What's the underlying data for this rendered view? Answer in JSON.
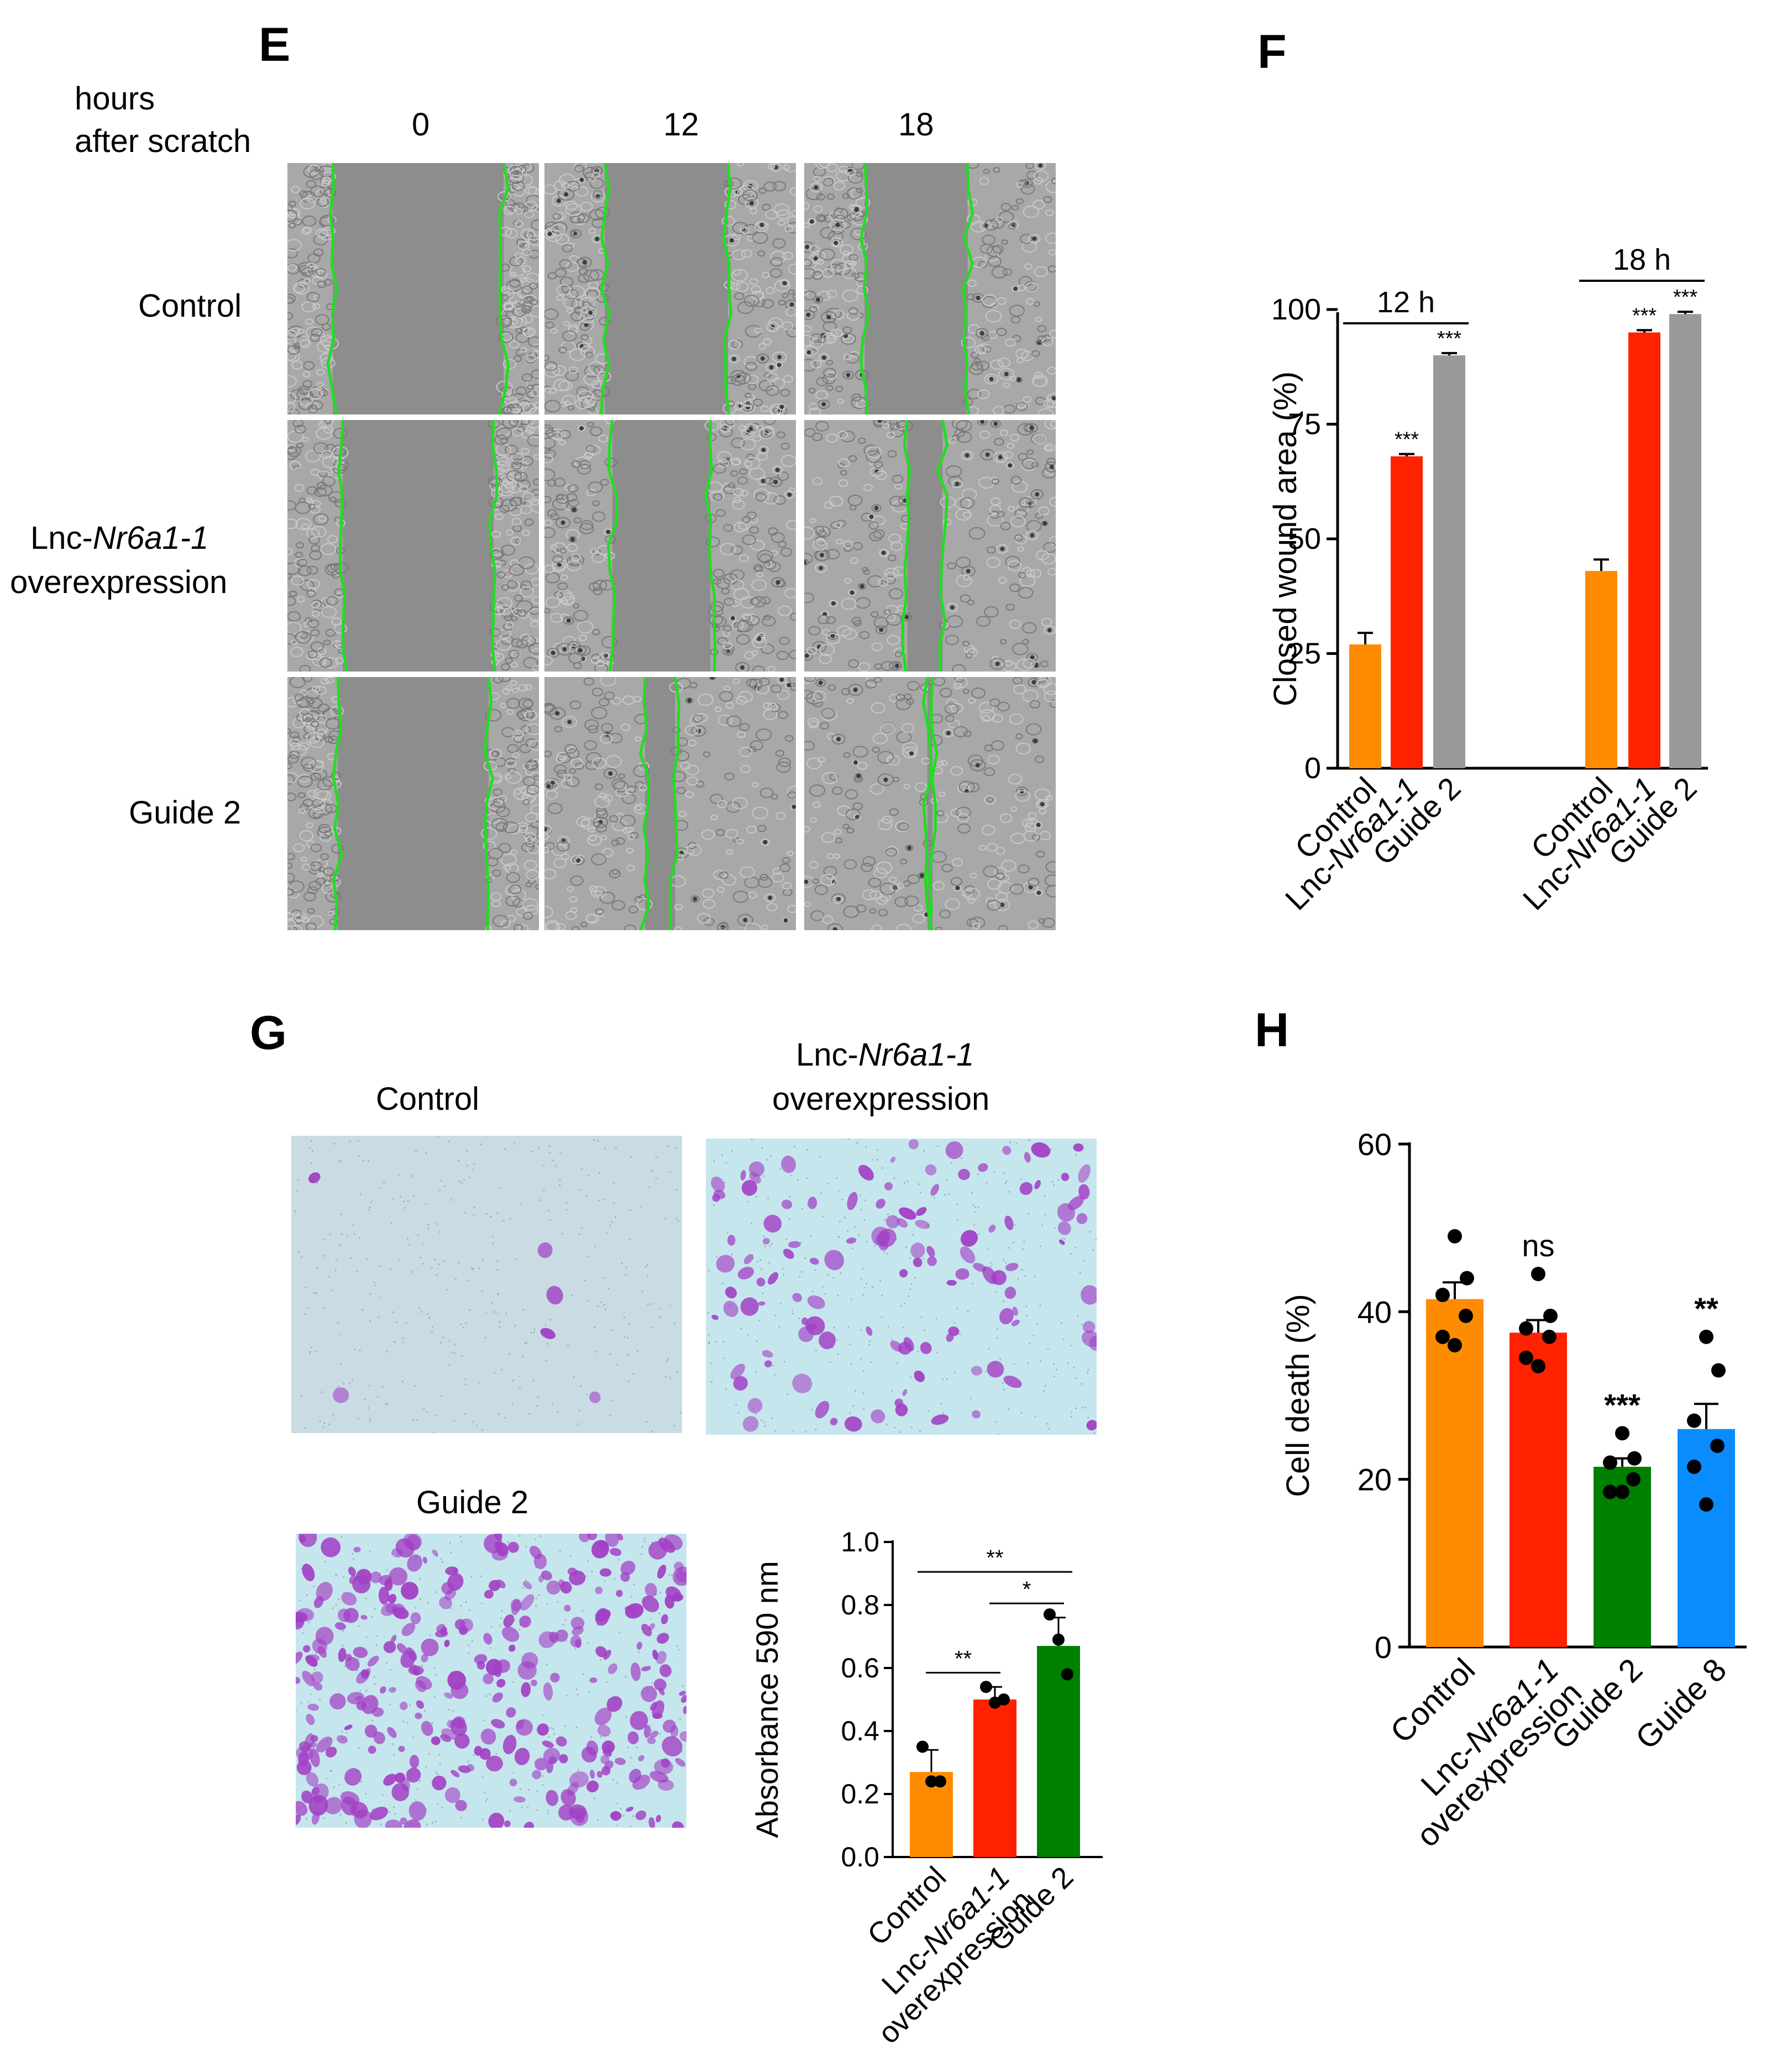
{
  "panels": {
    "e": {
      "letter": "E",
      "time_header_line1": "hours",
      "time_header_line2": "after scratch",
      "time_points": [
        "0",
        "12",
        "18"
      ],
      "rows": [
        {
          "line1": "Control",
          "line2": ""
        },
        {
          "line1_prefix": "Lnc-",
          "line1_italic": "Nr6a1-1",
          "line2": "overexpression"
        },
        {
          "line1": "Guide 2",
          "line2": ""
        }
      ],
      "wound_line_color": "#22dd22"
    },
    "f": {
      "letter": "F"
    },
    "g": {
      "letter": "G",
      "image_titles": {
        "control": "Control",
        "overexpression_prefix": "Lnc-",
        "overexpression_italic": "Nr6a1-1",
        "overexpression_line2": "overexpression",
        "guide2": "Guide 2"
      }
    },
    "h": {
      "letter": "H"
    }
  },
  "colors": {
    "control": "#ff8c00",
    "overexpression": "#ff2200",
    "guide2_f": "#999999",
    "guide2_gh": "#008000",
    "guide8": "#0a8cff",
    "stain": "#a23fc4",
    "membrane": "#c6e6ee"
  },
  "chart_data": [
    {
      "id": "F",
      "type": "bar",
      "ylabel": "Closed wound area (%)",
      "ylim": [
        0,
        100
      ],
      "yticks": [
        0,
        25,
        50,
        75,
        100
      ],
      "groups": [
        {
          "name": "12 h",
          "categories": [
            {
              "prefix": "Control",
              "italic": ""
            },
            {
              "prefix": "Lnc-",
              "italic": "Nr6a1-1"
            },
            {
              "prefix": "Guide 2",
              "italic": ""
            }
          ],
          "values": [
            27,
            68,
            90
          ],
          "errors": [
            2.5,
            0.5,
            0.5
          ],
          "sig": [
            "",
            "***",
            "***"
          ]
        },
        {
          "name": "18 h",
          "categories": [
            {
              "prefix": "Control",
              "italic": ""
            },
            {
              "prefix": "Lnc-",
              "italic": "Nr6a1-1"
            },
            {
              "prefix": "Guide 2",
              "italic": ""
            }
          ],
          "values": [
            43,
            95,
            99
          ],
          "errors": [
            2.5,
            0.5,
            0.5
          ],
          "sig": [
            "",
            "***",
            "***"
          ]
        }
      ]
    },
    {
      "id": "G",
      "type": "bar",
      "ylabel": "Absorbance 590 nm",
      "ylim": [
        0,
        1.0
      ],
      "yticks": [
        "0.0",
        "0.2",
        "0.4",
        "0.6",
        "0.8",
        "1.0"
      ],
      "categories": [
        {
          "line1_prefix": "Control",
          "line1_italic": "",
          "line2": ""
        },
        {
          "line1_prefix": "Lnc-",
          "line1_italic": "Nr6a1-1",
          "line2": "overexpression"
        },
        {
          "line1_prefix": "Guide 2",
          "line1_italic": "",
          "line2": ""
        }
      ],
      "values": [
        0.27,
        0.5,
        0.67
      ],
      "errors": [
        0.07,
        0.04,
        0.09
      ],
      "points": [
        [
          0.35,
          0.24,
          0.24
        ],
        [
          0.54,
          0.49,
          0.5
        ],
        [
          0.77,
          0.69,
          0.58
        ]
      ],
      "comparisons": [
        {
          "from": 0,
          "to": 1,
          "label": "**",
          "y": 0.585
        },
        {
          "from": 1,
          "to": 2,
          "label": "*",
          "y": 0.805
        },
        {
          "from": 0,
          "to": 2,
          "label": "**",
          "y": 0.905
        }
      ]
    },
    {
      "id": "H",
      "type": "bar",
      "ylabel": "Cell death (%)",
      "ylim": [
        0,
        60
      ],
      "yticks": [
        0,
        20,
        40,
        60
      ],
      "categories": [
        {
          "line1_prefix": "Control",
          "line1_italic": "",
          "line2": ""
        },
        {
          "line1_prefix": "Lnc-",
          "line1_italic": "Nr6a1-1",
          "line2": "overexpression"
        },
        {
          "line1_prefix": "Guide 2",
          "line1_italic": "",
          "line2": ""
        },
        {
          "line1_prefix": "Guide 8",
          "line1_italic": "",
          "line2": ""
        }
      ],
      "values": [
        41.5,
        37.5,
        21.5,
        26
      ],
      "errors": [
        2,
        1.5,
        1,
        3
      ],
      "sig": [
        "",
        "ns",
        "***",
        "**"
      ],
      "points": [
        [
          49,
          44,
          42,
          39.5,
          37,
          36
        ],
        [
          44.5,
          39.5,
          38,
          37,
          34.5,
          33.5
        ],
        [
          25.5,
          22.5,
          22,
          20,
          18.5,
          18.5
        ],
        [
          37,
          33,
          27,
          24,
          21.5,
          17
        ]
      ]
    }
  ]
}
